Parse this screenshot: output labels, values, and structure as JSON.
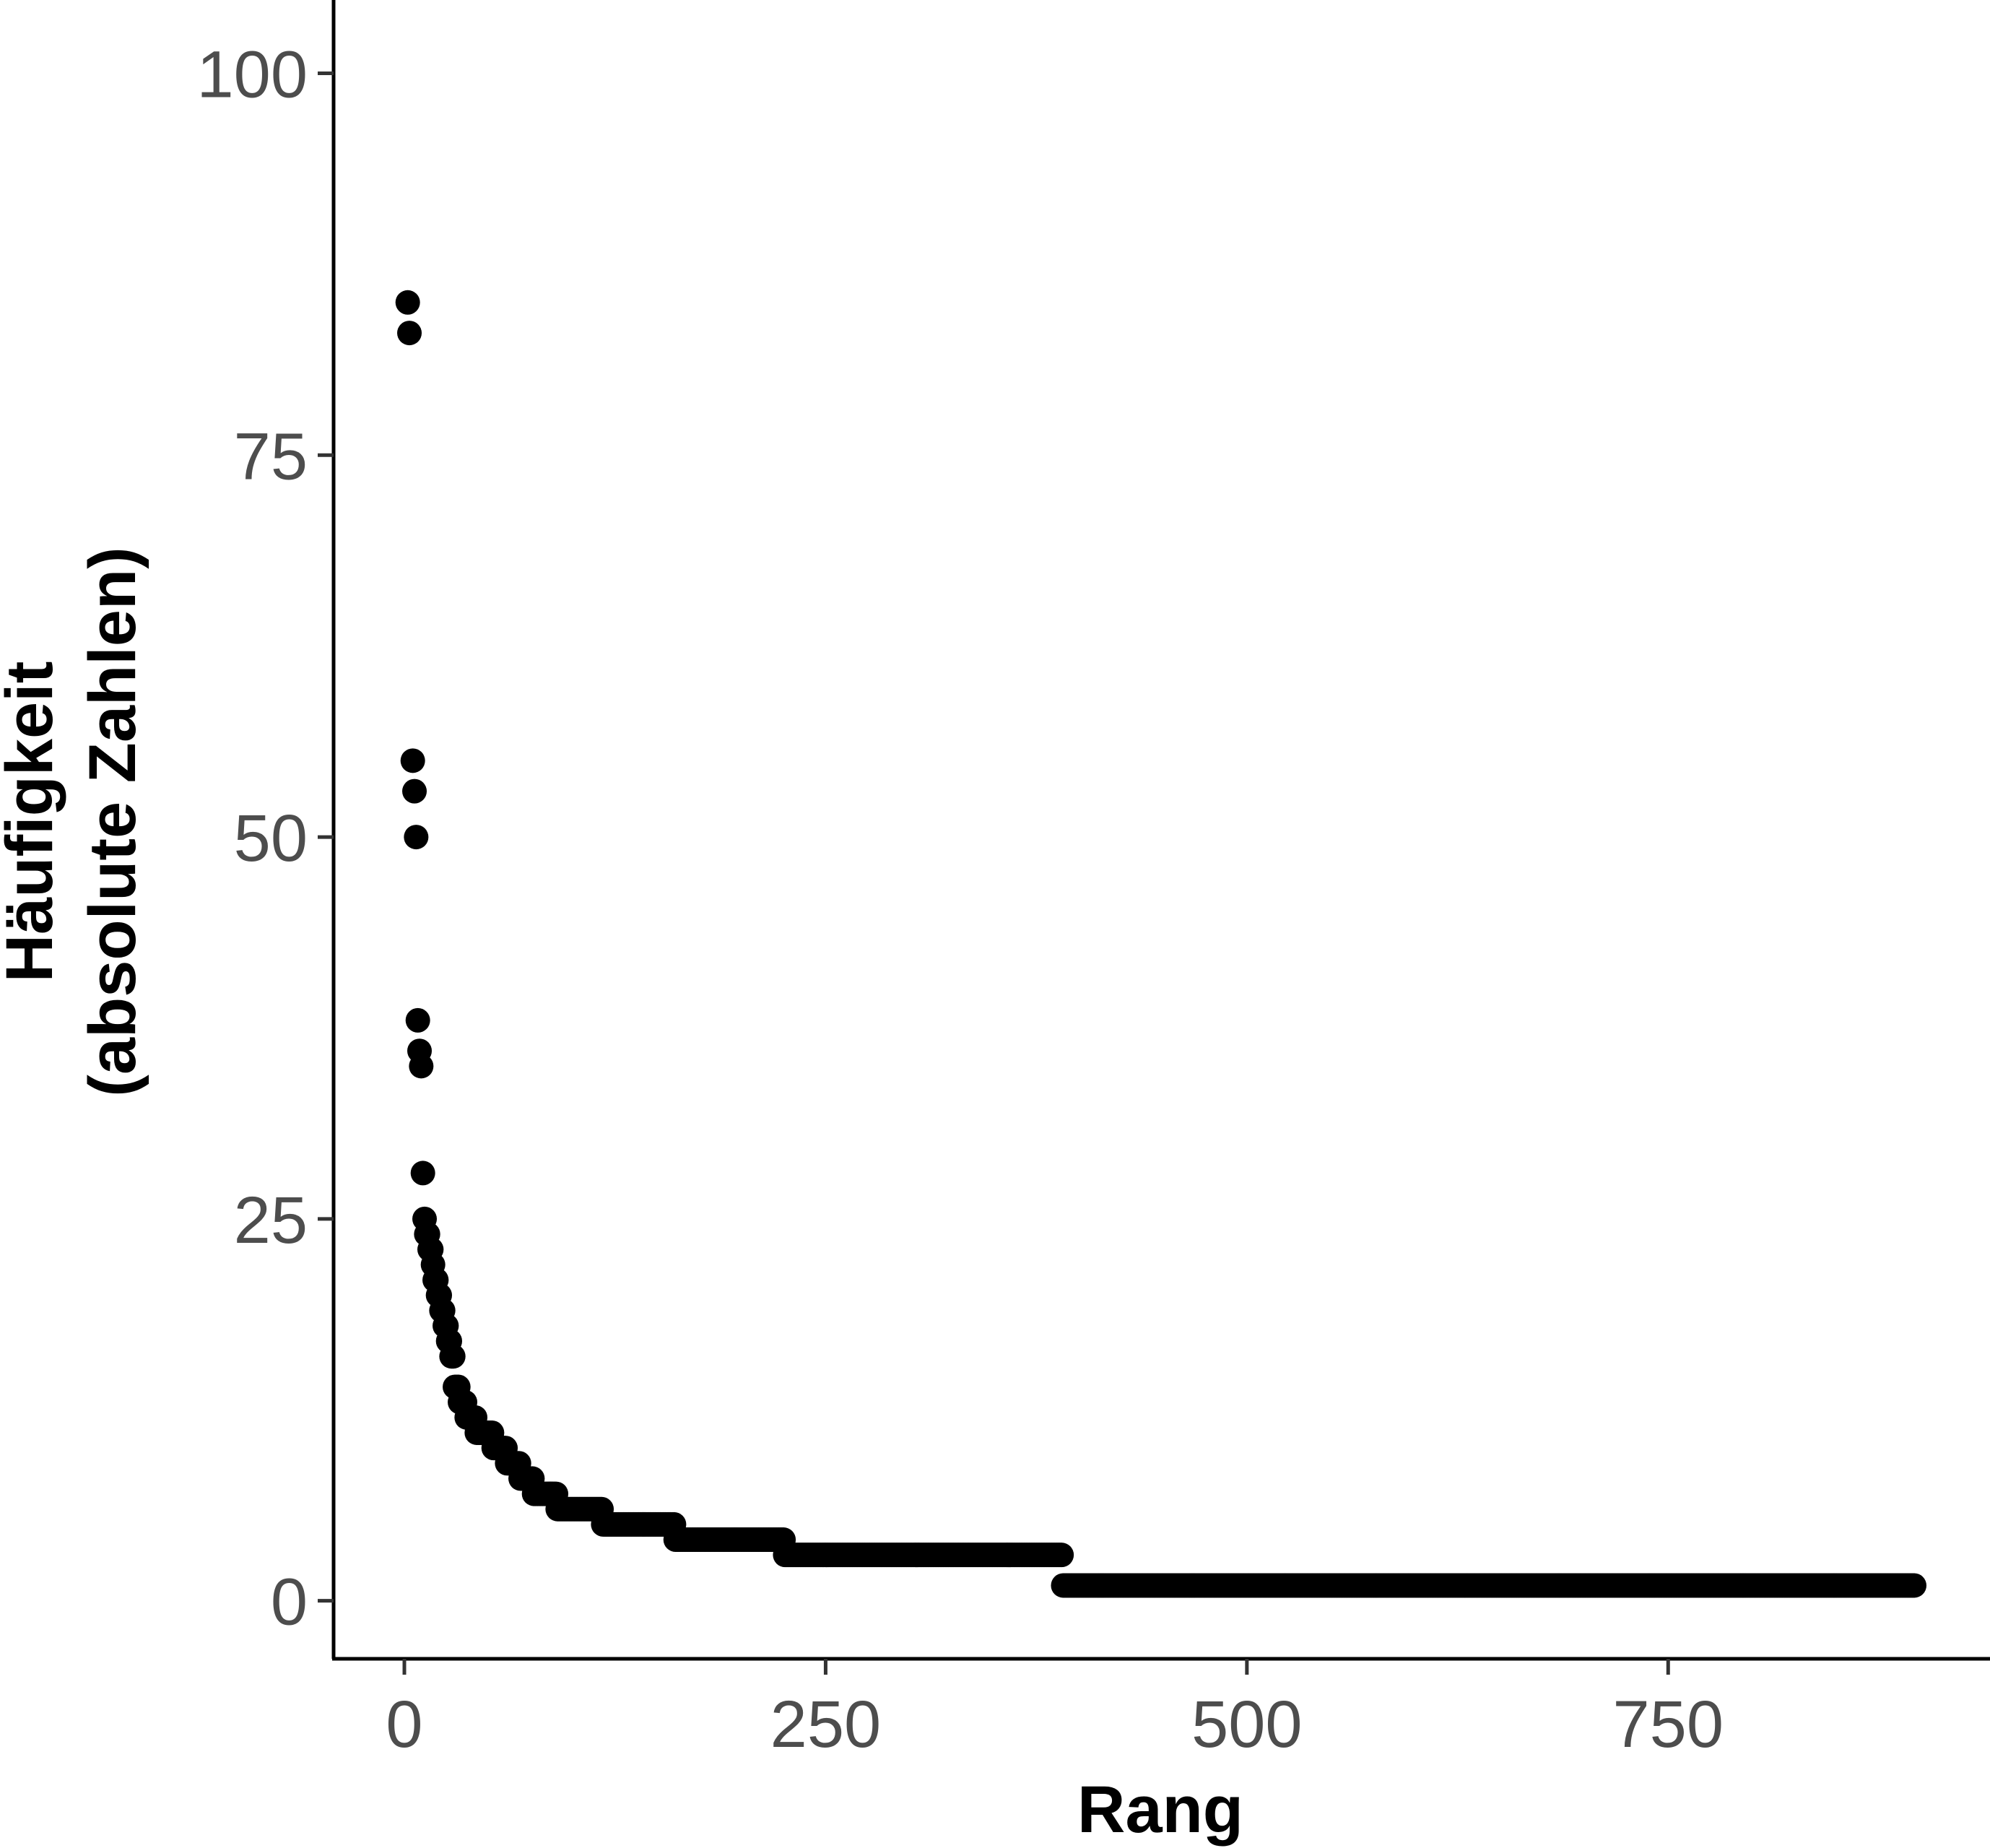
{
  "chart_data": {
    "type": "scatter",
    "title": "",
    "xlabel": "Rang",
    "ylabel_lines": [
      "Häufigkeit",
      "(absolute Zahlen)"
    ],
    "x_ticks": [
      0,
      250,
      500,
      750
    ],
    "x_tick_labels": [
      "0",
      "250",
      "500",
      "750"
    ],
    "y_ticks": [
      0,
      25,
      50,
      75,
      100
    ],
    "y_tick_labels": [
      "0",
      "25",
      "50",
      "75",
      "100"
    ],
    "xlim": [
      -42,
      941
    ],
    "ylim": [
      -3.8,
      104.8
    ],
    "grid": false,
    "legend": "none",
    "point_color": "#000000",
    "points": [
      [
        2,
        85
      ],
      [
        3,
        83
      ],
      [
        5,
        55
      ],
      [
        6,
        53
      ],
      [
        7,
        50
      ],
      [
        8,
        38
      ],
      [
        9,
        36
      ],
      [
        10,
        35
      ],
      [
        11,
        28
      ],
      [
        12,
        25
      ]
    ],
    "runs": [
      {
        "from": 13,
        "to": 14,
        "y": 24
      },
      {
        "from": 15,
        "to": 16,
        "y": 23
      },
      {
        "from": 17,
        "to": 17,
        "y": 22
      },
      {
        "from": 18,
        "to": 19,
        "y": 21
      },
      {
        "from": 20,
        "to": 21,
        "y": 20
      },
      {
        "from": 22,
        "to": 23,
        "y": 19
      },
      {
        "from": 24,
        "to": 25,
        "y": 18
      },
      {
        "from": 26,
        "to": 27,
        "y": 17
      },
      {
        "from": 28,
        "to": 29,
        "y": 16
      },
      {
        "from": 30,
        "to": 32,
        "y": 14
      },
      {
        "from": 33,
        "to": 36,
        "y": 13
      },
      {
        "from": 37,
        "to": 42,
        "y": 12
      },
      {
        "from": 43,
        "to": 52,
        "y": 11
      },
      {
        "from": 53,
        "to": 60,
        "y": 10
      },
      {
        "from": 61,
        "to": 68,
        "y": 9
      },
      {
        "from": 69,
        "to": 76,
        "y": 8
      },
      {
        "from": 77,
        "to": 90,
        "y": 7
      },
      {
        "from": 91,
        "to": 117,
        "y": 6
      },
      {
        "from": 118,
        "to": 160,
        "y": 5
      },
      {
        "from": 161,
        "to": 225,
        "y": 4
      },
      {
        "from": 226,
        "to": 390,
        "y": 3
      },
      {
        "from": 391,
        "to": 896,
        "y": 1
      }
    ]
  }
}
